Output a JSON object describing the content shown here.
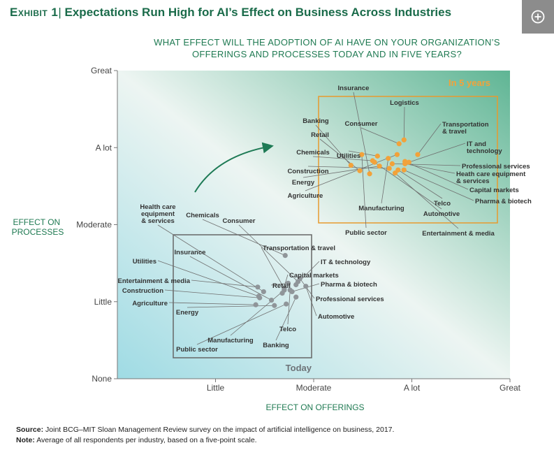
{
  "header": {
    "exhibit": "Exhibit 1",
    "title": "Expectations Run High for AI’s Effect on Business Across Industries"
  },
  "question": {
    "line1": "WHAT EFFECT WILL THE ADOPTION OF AI HAVE ON YOUR ORGANIZATION’S",
    "line2": "OFFERINGS AND PROCESSES TODAY AND IN FIVE YEARS?"
  },
  "icons": {
    "expand": "plus-circle-icon"
  },
  "chart_data": {
    "type": "scatter",
    "xlabel": "EFFECT ON OFFERINGS",
    "ylabel": "EFFECT ON PROCESSES",
    "x_ticks": [
      "None",
      "Little",
      "Moderate",
      "A lot",
      "Great"
    ],
    "y_ticks": [
      "None",
      "Little",
      "Moderate",
      "A lot",
      "Great"
    ],
    "xlim": [
      1,
      5
    ],
    "ylim": [
      1,
      5
    ],
    "colors": {
      "today": "#8f9599",
      "five_years": "#f2a23a",
      "title": "#1a6b4a",
      "arrow": "#1e7a55"
    },
    "series": [
      {
        "name": "Today",
        "points": [
          {
            "label": "Health care equipment & services",
            "x": 2.49,
            "y": 2.13
          },
          {
            "label": "Chemicals",
            "x": 2.71,
            "y": 2.6
          },
          {
            "label": "Consumer",
            "x": 2.84,
            "y": 2.26
          },
          {
            "label": "Insurance",
            "x": 2.57,
            "y": 2.02
          },
          {
            "label": "Utilities",
            "x": 2.44,
            "y": 2.07
          },
          {
            "label": "Entertainment & media",
            "x": 2.43,
            "y": 2.19
          },
          {
            "label": "Construction",
            "x": 2.45,
            "y": 2.05
          },
          {
            "label": "Agriculture",
            "x": 2.41,
            "y": 1.96
          },
          {
            "label": "Energy",
            "x": 2.6,
            "y": 1.95
          },
          {
            "label": "Public sector",
            "x": 2.72,
            "y": 1.97
          },
          {
            "label": "Manufacturing",
            "x": 2.7,
            "y": 2.15
          },
          {
            "label": "Banking",
            "x": 2.82,
            "y": 2.06
          },
          {
            "label": "Telco",
            "x": 2.76,
            "y": 2.15
          },
          {
            "label": "Automotive",
            "x": 2.92,
            "y": 2.2
          },
          {
            "label": "Professional services",
            "x": 2.86,
            "y": 2.3
          },
          {
            "label": "Retail",
            "x": 2.74,
            "y": 2.24
          },
          {
            "label": "Pharma & biotech",
            "x": 2.78,
            "y": 2.13
          },
          {
            "label": "Capital markets",
            "x": 2.68,
            "y": 2.11
          },
          {
            "label": "IT & technology",
            "x": 2.82,
            "y": 2.22
          },
          {
            "label": "Transportation & travel",
            "x": 2.7,
            "y": 2.17
          }
        ]
      },
      {
        "name": "In 5 years",
        "points": [
          {
            "label": "Insurance",
            "x": 3.57,
            "y": 3.66
          },
          {
            "label": "Logistics",
            "x": 3.92,
            "y": 4.1
          },
          {
            "label": "Consumer",
            "x": 3.87,
            "y": 4.05
          },
          {
            "label": "Banking",
            "x": 3.38,
            "y": 3.77
          },
          {
            "label": "Retail",
            "x": 3.47,
            "y": 3.7
          },
          {
            "label": "Chemicals",
            "x": 3.6,
            "y": 3.83
          },
          {
            "label": "Utilities",
            "x": 3.65,
            "y": 3.89
          },
          {
            "label": "Construction",
            "x": 3.77,
            "y": 3.73
          },
          {
            "label": "Energy",
            "x": 3.67,
            "y": 3.76
          },
          {
            "label": "Agriculture",
            "x": 3.85,
            "y": 3.91
          },
          {
            "label": "Transportation & travel",
            "x": 4.06,
            "y": 3.91
          },
          {
            "label": "IT and technology",
            "x": 3.97,
            "y": 3.81
          },
          {
            "label": "Professional services",
            "x": 3.8,
            "y": 3.79
          },
          {
            "label": "Heath care equipment & services",
            "x": 3.93,
            "y": 3.79
          },
          {
            "label": "Capital markets",
            "x": 3.93,
            "y": 3.82
          },
          {
            "label": "Pharma & biotech",
            "x": 3.92,
            "y": 3.71
          },
          {
            "label": "Telco",
            "x": 3.86,
            "y": 3.71
          },
          {
            "label": "Automotive",
            "x": 3.62,
            "y": 3.81
          },
          {
            "label": "Manufacturing",
            "x": 3.76,
            "y": 3.86
          },
          {
            "label": "Public sector",
            "x": 3.49,
            "y": 3.91
          },
          {
            "label": "Entertainment & media",
            "x": 3.83,
            "y": 3.67
          }
        ]
      }
    ],
    "annotations": {
      "today_box": "Today",
      "future_box": "In 5 years"
    }
  },
  "footer": {
    "source_label": "Source:",
    "source_text": "Joint BCG–MIT Sloan Management Review survey on the impact of artificial intelligence on business, 2017.",
    "note_label": "Note:",
    "note_text": "Average of all respondents per industry, based on a five-point scale."
  }
}
